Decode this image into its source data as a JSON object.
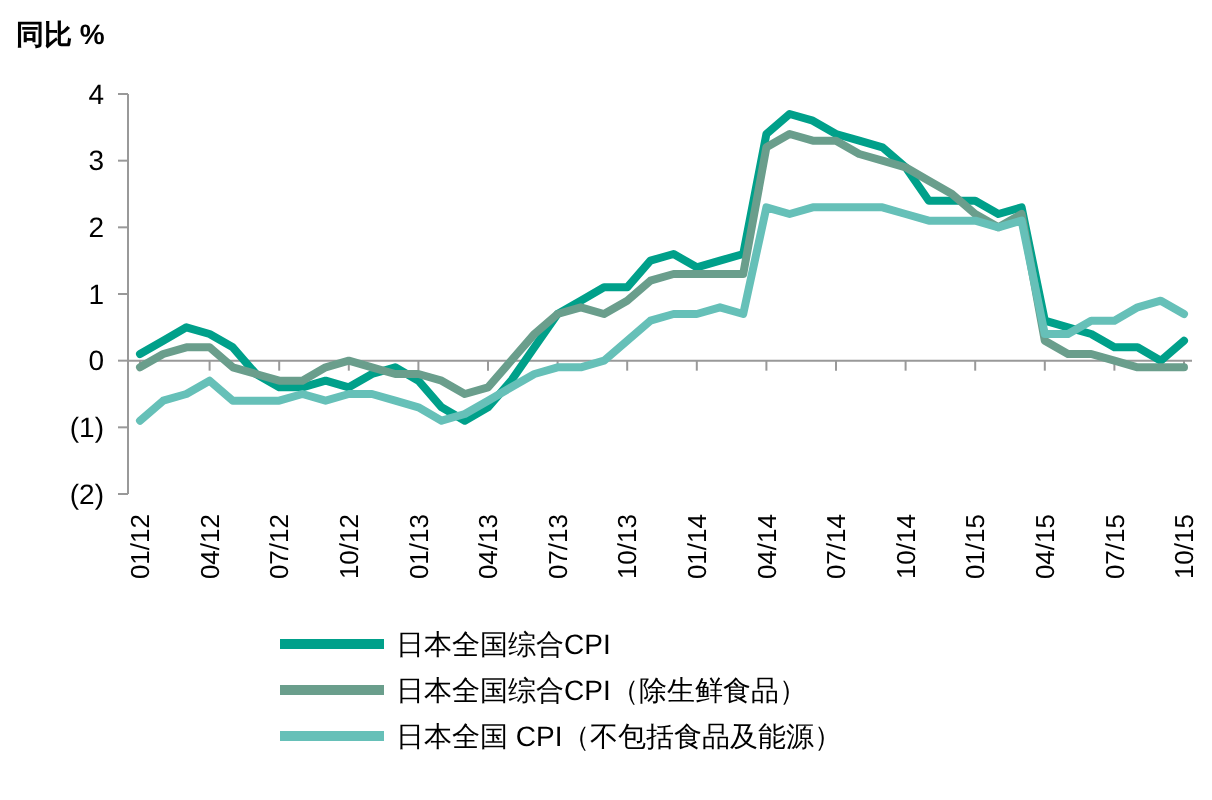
{
  "chart_data": {
    "type": "line",
    "ylabel": "同比 %",
    "categories": [
      "01/12",
      null,
      null,
      "04/12",
      null,
      null,
      "07/12",
      null,
      null,
      "10/12",
      null,
      null,
      "01/13",
      null,
      null,
      "04/13",
      null,
      null,
      "07/13",
      null,
      null,
      "10/13",
      null,
      null,
      "01/14",
      null,
      null,
      "04/14",
      null,
      null,
      "07/14",
      null,
      null,
      "10/14",
      null,
      null,
      "01/15",
      null,
      null,
      "04/15",
      null,
      null,
      "07/15",
      null,
      null,
      "10/15"
    ],
    "series": [
      {
        "name": "日本全国综合CPI",
        "color": "#00a08a",
        "values": [
          0.1,
          0.3,
          0.5,
          0.4,
          0.2,
          -0.2,
          -0.4,
          -0.4,
          -0.3,
          -0.4,
          -0.2,
          -0.1,
          -0.3,
          -0.7,
          -0.9,
          -0.7,
          -0.3,
          0.2,
          0.7,
          0.9,
          1.1,
          1.1,
          1.5,
          1.6,
          1.4,
          1.5,
          1.6,
          3.4,
          3.7,
          3.6,
          3.4,
          3.3,
          3.2,
          2.9,
          2.4,
          2.4,
          2.4,
          2.2,
          2.3,
          0.6,
          0.5,
          0.4,
          0.2,
          0.2,
          0.0,
          0.3
        ]
      },
      {
        "name": "日本全国综合CPI（除生鲜食品）",
        "color": "#6a9e8c",
        "values": [
          -0.1,
          0.1,
          0.2,
          0.2,
          -0.1,
          -0.2,
          -0.3,
          -0.3,
          -0.1,
          0.0,
          -0.1,
          -0.2,
          -0.2,
          -0.3,
          -0.5,
          -0.4,
          0.0,
          0.4,
          0.7,
          0.8,
          0.7,
          0.9,
          1.2,
          1.3,
          1.3,
          1.3,
          1.3,
          3.2,
          3.4,
          3.3,
          3.3,
          3.1,
          3.0,
          2.9,
          2.7,
          2.5,
          2.2,
          2.0,
          2.2,
          0.3,
          0.1,
          0.1,
          0.0,
          -0.1,
          -0.1,
          -0.1
        ]
      },
      {
        "name": "日本全国 CPI（不包括食品及能源）",
        "color": "#66c0b8",
        "values": [
          -0.9,
          -0.6,
          -0.5,
          -0.3,
          -0.6,
          -0.6,
          -0.6,
          -0.5,
          -0.6,
          -0.5,
          -0.5,
          -0.6,
          -0.7,
          -0.9,
          -0.8,
          -0.6,
          -0.4,
          -0.2,
          -0.1,
          -0.1,
          0.0,
          0.3,
          0.6,
          0.7,
          0.7,
          0.8,
          0.7,
          2.3,
          2.2,
          2.3,
          2.3,
          2.3,
          2.3,
          2.2,
          2.1,
          2.1,
          2.1,
          2.0,
          2.1,
          0.4,
          0.4,
          0.6,
          0.6,
          0.8,
          0.9,
          0.7
        ]
      }
    ],
    "ylim": [
      -2,
      4
    ],
    "yticks": [
      {
        "value": -2,
        "label": "(2)"
      },
      {
        "value": -1,
        "label": "(1)"
      },
      0,
      1,
      2,
      3,
      4
    ],
    "legend": "bottom"
  }
}
